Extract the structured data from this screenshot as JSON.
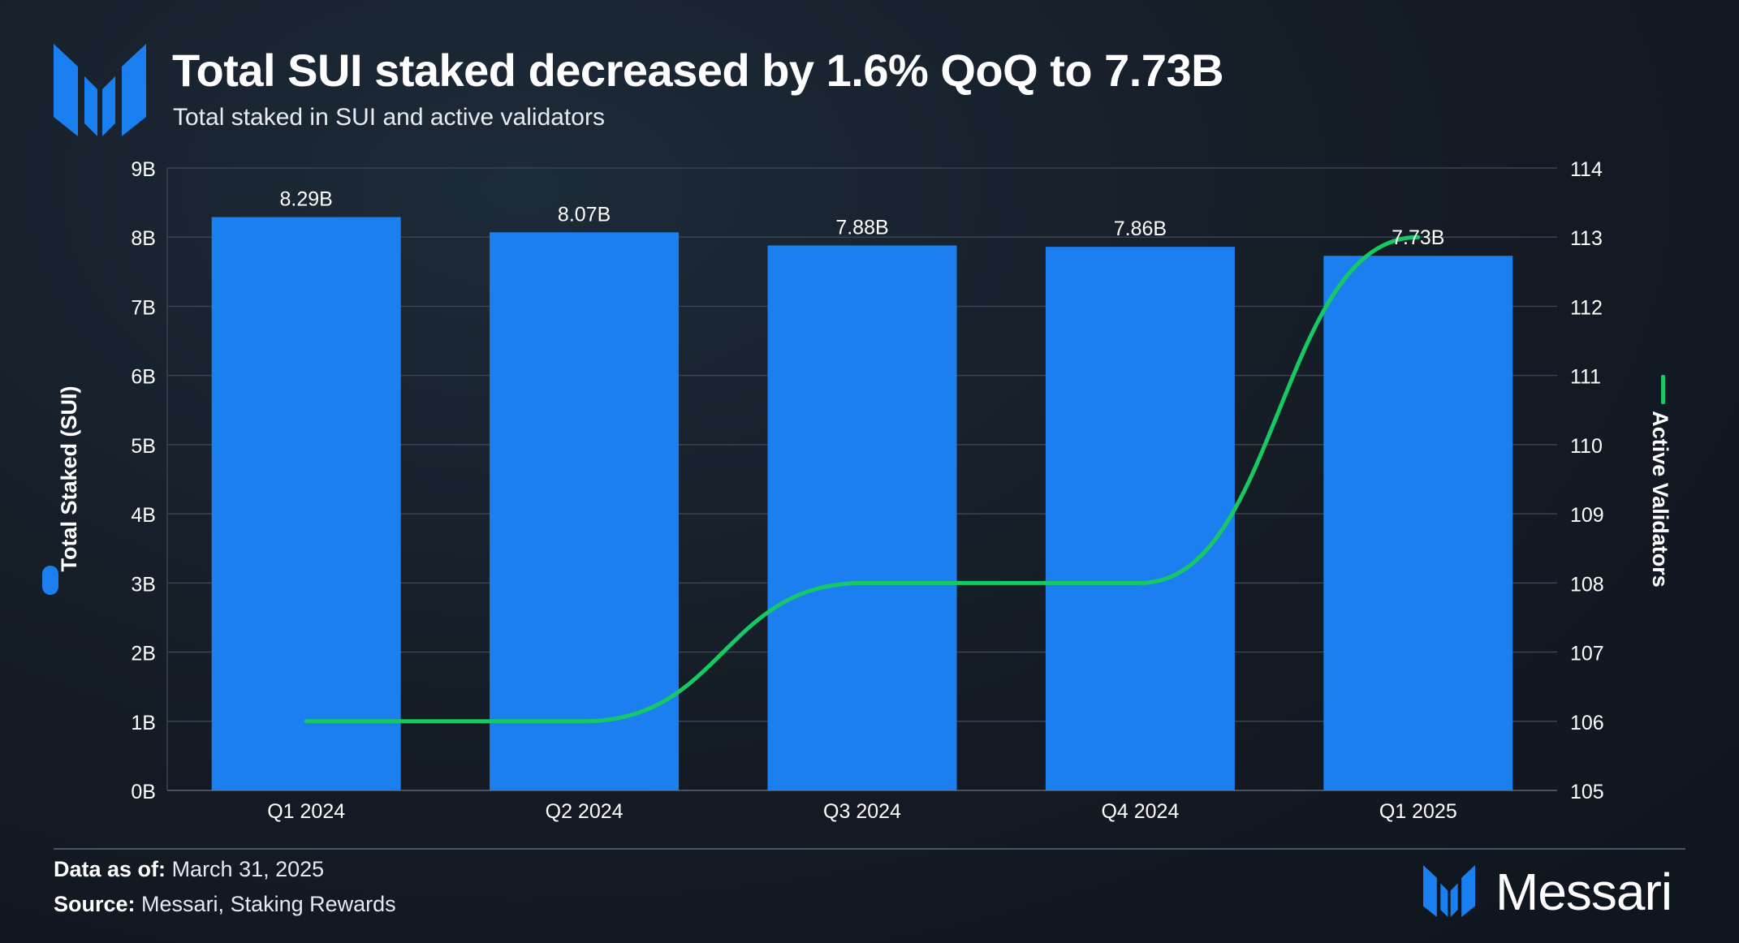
{
  "header": {
    "title": "Total SUI staked decreased by 1.6% QoQ to 7.73B",
    "subtitle": "Total staked in SUI and active validators"
  },
  "colors": {
    "bar": "#1b7ff0",
    "line": "#17c964",
    "grid": "#3a4350",
    "brand_blue": "#1a7ff0"
  },
  "chart_data": {
    "type": "bar",
    "categories": [
      "Q1 2024",
      "Q2 2024",
      "Q3 2024",
      "Q4 2024",
      "Q1 2025"
    ],
    "series": [
      {
        "name": "Total Staked (SUI)",
        "type": "bar",
        "axis": "left",
        "values": [
          8.29,
          8.07,
          7.88,
          7.86,
          7.73
        ],
        "labels": [
          "8.29B",
          "8.07B",
          "7.88B",
          "7.86B",
          "7.73B"
        ]
      },
      {
        "name": "Active Validators",
        "type": "line",
        "axis": "right",
        "values": [
          106,
          106,
          108,
          108,
          113
        ]
      }
    ],
    "y_left": {
      "label": "Total Staked (SUI)",
      "ylim": [
        0,
        9
      ],
      "ticks": [
        "0B",
        "1B",
        "2B",
        "3B",
        "4B",
        "5B",
        "6B",
        "7B",
        "8B",
        "9B"
      ]
    },
    "y_right": {
      "label": "Active Validators",
      "ylim": [
        105,
        114
      ],
      "ticks": [
        "105",
        "106",
        "107",
        "108",
        "109",
        "110",
        "111",
        "112",
        "113",
        "114"
      ]
    },
    "grid": true,
    "legend": "axis-labels"
  },
  "footer": {
    "data_as_of_label": "Data as of:",
    "data_as_of_value": "March 31, 2025",
    "source_label": "Source:",
    "source_value": "Messari, Staking Rewards",
    "brand": "Messari"
  }
}
